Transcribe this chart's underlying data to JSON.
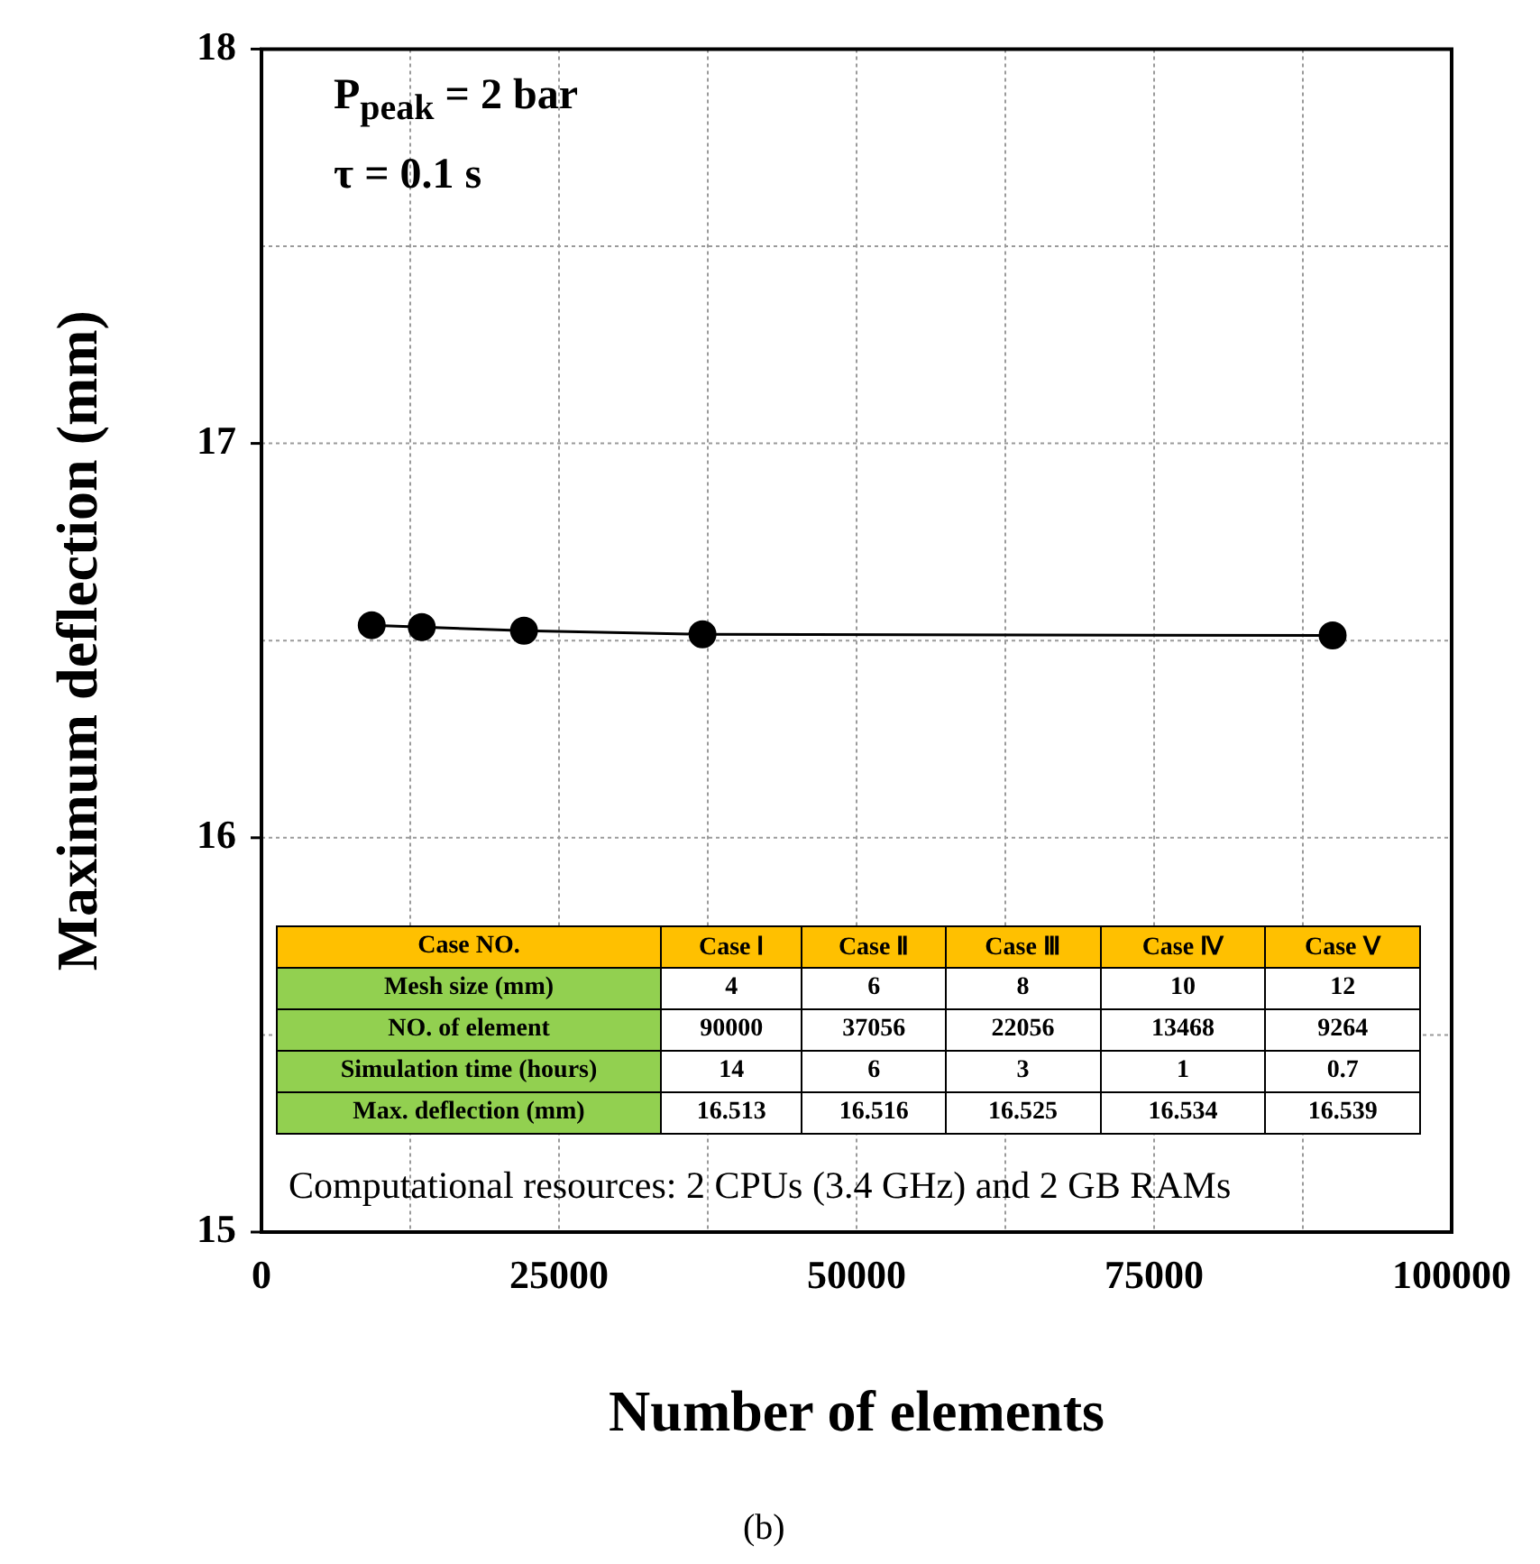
{
  "chart_data": {
    "type": "line",
    "xlabel": "Number of elements",
    "ylabel": "Maximum deflection (mm)",
    "x": [
      90000,
      37056,
      22056,
      13468,
      9264
    ],
    "series": [
      {
        "color": "#000000",
        "values": [
          16.513,
          16.516,
          16.525,
          16.534,
          16.539
        ]
      }
    ],
    "xlim": [
      0,
      100000
    ],
    "ylim": [
      15,
      18
    ],
    "xticks": [
      0,
      {
        "value": 12500,
        "label": null
      },
      25000,
      {
        "value": 37500,
        "label": null
      },
      50000,
      {
        "value": 62500,
        "label": null
      },
      75000,
      {
        "value": 87500,
        "label": null
      },
      100000
    ],
    "yticks": [
      15,
      {
        "value": 15.5,
        "label": null
      },
      16,
      {
        "value": 16.5,
        "label": null
      },
      17,
      {
        "value": 17.5,
        "label": null
      },
      18
    ],
    "grid": true,
    "marker": "circle",
    "line_style": "solid",
    "annotations": [
      "P$_{peak}$ = 2 bar",
      "τ = 0.1 s",
      "Computational resources: 2 CPUs (3.4 GHz) and 2 GB RAMs",
      "(b)",
      "Case NO.",
      "Case Ⅰ",
      "Case Ⅱ",
      "Case Ⅲ",
      "Case Ⅳ",
      "Case Ⅴ",
      "Mesh size (mm)",
      "4",
      "6",
      "8",
      "10",
      "12",
      "NO. of element",
      "90000",
      "37056",
      "22056",
      "13468",
      "9264",
      "Simulation time (hours)",
      "14",
      "6",
      "3",
      "1",
      "0.7",
      "Max. deflection (mm)",
      "16.513",
      "16.516",
      "16.525",
      "16.534",
      "16.539"
    ]
  }
}
